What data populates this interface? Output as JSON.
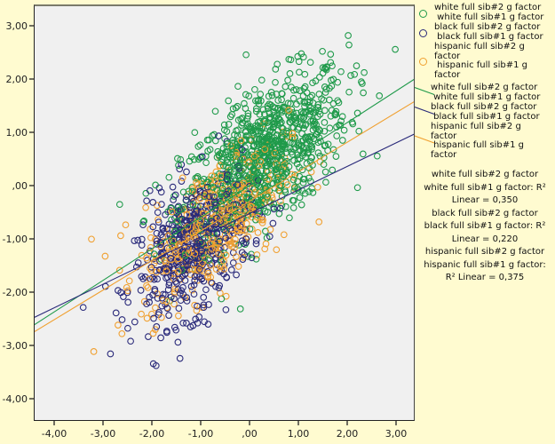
{
  "chart_data": {
    "type": "scatter",
    "title": "",
    "xlabel": "",
    "ylabel": "",
    "xlim": [
      -4.42,
      3.38
    ],
    "ylim": [
      -4.42,
      3.4
    ],
    "x_ticks": [
      -4,
      -3,
      -2,
      -1,
      0,
      1,
      2,
      3
    ],
    "x_tick_labels": [
      "-4,00",
      "-3,00",
      "-2,00",
      "-1,00",
      ",00",
      "1,00",
      "2,00",
      "3,00"
    ],
    "y_ticks": [
      3,
      2,
      1,
      0,
      -1,
      -2,
      -3,
      -4
    ],
    "y_tick_labels": [
      "3,00",
      "2,00",
      "1,00",
      ",00",
      "-1,00",
      "-2,00",
      "-3,00",
      "-4,00"
    ],
    "grid": false,
    "legend_position": "right",
    "series": [
      {
        "name": "white full sib#2 g factor / white full sib#1 g factor",
        "color": "#1f9a4a",
        "marker": "open-circle",
        "approx_center": [
          0.3,
          0.55
        ],
        "approx_spread": [
          0.85,
          0.8
        ],
        "n_points": 900,
        "fit_line": {
          "x": [
            -4.42,
            3.38
          ],
          "y": [
            -2.62,
            2.0
          ]
        },
        "r2_linear": 0.35
      },
      {
        "name": "black full sib#2 g factor / black full sib#1 g factor",
        "color": "#2a2a7a",
        "marker": "open-circle",
        "approx_center": [
          -1.15,
          -1.15
        ],
        "approx_spread": [
          0.6,
          0.7
        ],
        "n_points": 500,
        "fit_line": {
          "x": [
            -4.42,
            3.38
          ],
          "y": [
            -2.48,
            0.97
          ]
        },
        "r2_linear": 0.22
      },
      {
        "name": "hispanic full sib#2 g factor / hispanic full sib#1 g factor",
        "color": "#f0a030",
        "marker": "open-circle",
        "approx_center": [
          -0.7,
          -0.7
        ],
        "approx_spread": [
          0.75,
          0.75
        ],
        "n_points": 450,
        "fit_line": {
          "x": [
            -4.42,
            3.38
          ],
          "y": [
            -2.75,
            1.58
          ]
        },
        "r2_linear": 0.375
      }
    ]
  },
  "legend": {
    "marker_entries": [
      {
        "lines": [
          "white full sib#2 g factor",
          " white full sib#1 g factor"
        ],
        "color": "#1f9a4a"
      },
      {
        "lines": [
          "black full sib#2 g factor",
          " black full sib#1 g factor"
        ],
        "color": "#2a2a7a"
      },
      {
        "lines": [
          "hispanic full sib#2 g",
          "factor",
          " hispanic full sib#1 g",
          "factor"
        ],
        "color": "#f0a030"
      }
    ],
    "line_entries": [
      {
        "lines": [
          "white full sib#2 g factor",
          " white full sib#1 g factor"
        ],
        "color": "#1f9a4a"
      },
      {
        "lines": [
          "black full sib#2 g factor",
          " black full sib#1 g factor"
        ],
        "color": "#2a2a7a"
      },
      {
        "lines": [
          "hispanic full sib#2 g",
          "factor",
          " hispanic full sib#1 g",
          "factor"
        ],
        "color": "#f0a030"
      }
    ],
    "r2_lines": [
      "white full sib#2 g factor",
      "white full sib#1 g factor: R² ",
      "Linear = 0,350",
      "black full sib#2 g factor",
      "black full sib#1 g factor: R² ",
      "Linear = 0,220",
      "hispanic full sib#2 g factor",
      "hispanic full sib#1 g factor:",
      "R² Linear = 0,375"
    ]
  }
}
